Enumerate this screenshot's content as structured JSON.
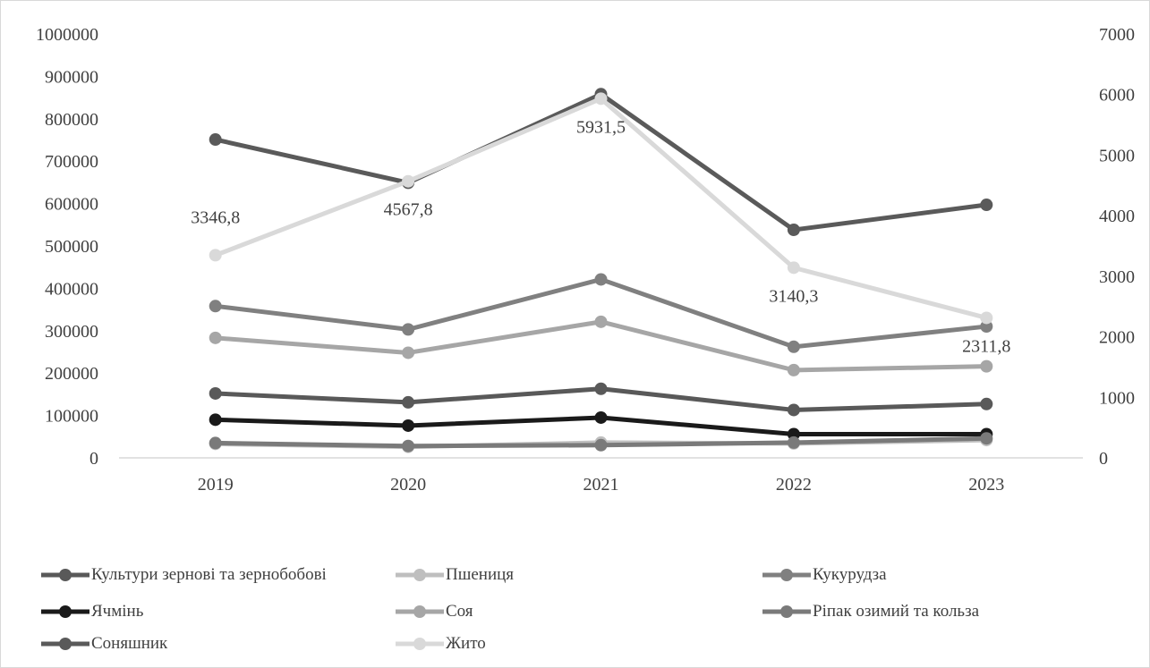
{
  "chart_data": {
    "type": "line",
    "categories": [
      "2019",
      "2020",
      "2021",
      "2022",
      "2023"
    ],
    "y_left": {
      "min": 0,
      "max": 1000000,
      "ticks": [
        "0",
        "100000",
        "200000",
        "300000",
        "400000",
        "500000",
        "600000",
        "700000",
        "800000",
        "900000",
        "1000000"
      ]
    },
    "y_right": {
      "min": 0,
      "max": 7000,
      "ticks": [
        "0",
        "1000",
        "2000",
        "3000",
        "4000",
        "5000",
        "6000",
        "7000"
      ]
    },
    "grid": false,
    "legend_position": "bottom",
    "series": [
      {
        "name": "Культури зернові та зернобобові",
        "axis": "left",
        "color": "#595959",
        "values": [
          152000,
          131000,
          163000,
          113000,
          127000
        ]
      },
      {
        "name": "Пшениця",
        "axis": "left",
        "color": "#bfbfbf",
        "values": [
          33000,
          26000,
          36000,
          34000,
          42000
        ]
      },
      {
        "name": "Кукурудза",
        "axis": "left",
        "color": "#808080",
        "values": [
          358000,
          303000,
          421000,
          262000,
          310000
        ]
      },
      {
        "name": "Ячмінь",
        "axis": "left",
        "color": "#1a1a1a",
        "values": [
          90000,
          76000,
          95000,
          56000,
          56000
        ]
      },
      {
        "name": "Соя",
        "axis": "left",
        "color": "#a6a6a6",
        "values": [
          283000,
          248000,
          321000,
          207000,
          216000
        ]
      },
      {
        "name": "Ріпак озимий та кольза",
        "axis": "left",
        "color": "#7a7a7a",
        "values": [
          35000,
          28000,
          30000,
          36000,
          46000
        ]
      },
      {
        "name": "Соняшник",
        "axis": "left",
        "color": "#5a5a5a",
        "values": [
          751000,
          649000,
          858000,
          538000,
          597000
        ]
      },
      {
        "name": "Жито",
        "axis": "right",
        "color": "#d9d9d9",
        "values": [
          3346.8,
          4567.8,
          5931.5,
          3140.3,
          2311.8
        ]
      }
    ],
    "data_labels": [
      "3346,8",
      "4567,8",
      "5931,5",
      "3140,3",
      "2311,8"
    ]
  }
}
